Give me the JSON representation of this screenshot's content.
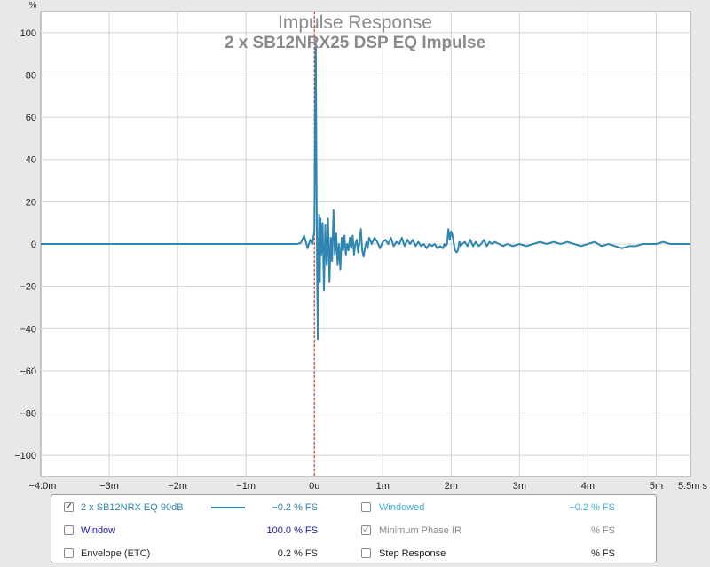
{
  "chart_data": {
    "type": "line",
    "title": "Impulse Response",
    "subtitle": "2 x SB12NRX25 DSP EQ Impulse",
    "ylabel": "%",
    "xunit": "s",
    "xlim": [
      -4.0,
      5.5
    ],
    "ylim": [
      -110,
      110
    ],
    "yticks": [
      100,
      80,
      60,
      40,
      20,
      0,
      -20,
      -40,
      -60,
      -80,
      -100
    ],
    "xticks": [
      {
        "v": -4,
        "label": "−4.0m"
      },
      {
        "v": -3,
        "label": "−3m"
      },
      {
        "v": -2,
        "label": "−2m"
      },
      {
        "v": -1,
        "label": "−1m"
      },
      {
        "v": 0,
        "label": "0u"
      },
      {
        "v": 1,
        "label": "1m"
      },
      {
        "v": 2,
        "label": "2m"
      },
      {
        "v": 3,
        "label": "3m"
      },
      {
        "v": 4,
        "label": "4m"
      },
      {
        "v": 5,
        "label": "5m"
      },
      {
        "v": 5.5,
        "label": "5.5m s"
      }
    ],
    "marker_x": 0.0,
    "series": [
      {
        "name": "2 x SB12NRX EQ 90dB",
        "color": "#2f86b0",
        "points": [
          [
            -4.0,
            0
          ],
          [
            -0.25,
            0
          ],
          [
            -0.2,
            0.5
          ],
          [
            -0.15,
            4
          ],
          [
            -0.1,
            -2
          ],
          [
            -0.06,
            2
          ],
          [
            -0.03,
            0
          ],
          [
            0.0,
            6
          ],
          [
            0.01,
            55
          ],
          [
            0.02,
            96
          ],
          [
            0.03,
            40
          ],
          [
            0.04,
            -15
          ],
          [
            0.05,
            -45
          ],
          [
            0.06,
            -10
          ],
          [
            0.07,
            14
          ],
          [
            0.08,
            -18
          ],
          [
            0.09,
            12
          ],
          [
            0.1,
            -5
          ],
          [
            0.12,
            10
          ],
          [
            0.14,
            -22
          ],
          [
            0.16,
            9
          ],
          [
            0.18,
            -10
          ],
          [
            0.2,
            12
          ],
          [
            0.22,
            -18
          ],
          [
            0.24,
            3
          ],
          [
            0.26,
            -8
          ],
          [
            0.28,
            16
          ],
          [
            0.3,
            -5
          ],
          [
            0.32,
            5
          ],
          [
            0.34,
            -10
          ],
          [
            0.36,
            0
          ],
          [
            0.38,
            -12
          ],
          [
            0.4,
            3
          ],
          [
            0.42,
            -3
          ],
          [
            0.44,
            4
          ],
          [
            0.46,
            -5
          ],
          [
            0.48,
            0
          ],
          [
            0.5,
            -3
          ],
          [
            0.52,
            3
          ],
          [
            0.54,
            -2
          ],
          [
            0.56,
            4
          ],
          [
            0.58,
            -5
          ],
          [
            0.6,
            0
          ],
          [
            0.62,
            2
          ],
          [
            0.64,
            -4
          ],
          [
            0.66,
            1
          ],
          [
            0.68,
            7
          ],
          [
            0.7,
            -3
          ],
          [
            0.72,
            -6
          ],
          [
            0.74,
            -2
          ],
          [
            0.76,
            1
          ],
          [
            0.78,
            -2
          ],
          [
            0.8,
            3
          ],
          [
            0.84,
            0
          ],
          [
            0.88,
            3
          ],
          [
            0.92,
            1
          ],
          [
            0.96,
            -2
          ],
          [
            1.0,
            1
          ],
          [
            1.04,
            2
          ],
          [
            1.08,
            0
          ],
          [
            1.12,
            3
          ],
          [
            1.16,
            -1
          ],
          [
            1.2,
            1
          ],
          [
            1.24,
            0
          ],
          [
            1.28,
            3
          ],
          [
            1.32,
            -1
          ],
          [
            1.36,
            2
          ],
          [
            1.4,
            0
          ],
          [
            1.44,
            2
          ],
          [
            1.48,
            -1
          ],
          [
            1.52,
            1
          ],
          [
            1.56,
            -1
          ],
          [
            1.6,
            0
          ],
          [
            1.64,
            -2
          ],
          [
            1.68,
            0
          ],
          [
            1.72,
            -1
          ],
          [
            1.76,
            0
          ],
          [
            1.8,
            -2
          ],
          [
            1.84,
            -1
          ],
          [
            1.88,
            -2
          ],
          [
            1.9,
            0
          ],
          [
            1.92,
            -1
          ],
          [
            1.94,
            0
          ],
          [
            1.96,
            7
          ],
          [
            1.98,
            2
          ],
          [
            2.0,
            6
          ],
          [
            2.02,
            4
          ],
          [
            2.04,
            0
          ],
          [
            2.06,
            -3
          ],
          [
            2.08,
            -4
          ],
          [
            2.1,
            -3
          ],
          [
            2.12,
            1
          ],
          [
            2.14,
            -1
          ],
          [
            2.16,
            0
          ],
          [
            2.2,
            1
          ],
          [
            2.24,
            -1
          ],
          [
            2.28,
            2
          ],
          [
            2.32,
            -1
          ],
          [
            2.36,
            1
          ],
          [
            2.4,
            -1
          ],
          [
            2.44,
            0
          ],
          [
            2.48,
            2
          ],
          [
            2.52,
            -1
          ],
          [
            2.56,
            1
          ],
          [
            2.6,
            0
          ],
          [
            2.64,
            1
          ],
          [
            2.7,
            0
          ],
          [
            2.76,
            -1
          ],
          [
            2.82,
            0
          ],
          [
            2.9,
            -1
          ],
          [
            3.0,
            0
          ],
          [
            3.1,
            -1
          ],
          [
            3.2,
            0
          ],
          [
            3.3,
            1
          ],
          [
            3.4,
            0
          ],
          [
            3.5,
            1
          ],
          [
            3.6,
            0
          ],
          [
            3.7,
            1
          ],
          [
            3.8,
            0
          ],
          [
            3.9,
            -1
          ],
          [
            4.0,
            0
          ],
          [
            4.1,
            1
          ],
          [
            4.2,
            -1
          ],
          [
            4.3,
            0
          ],
          [
            4.4,
            -1
          ],
          [
            4.5,
            -2
          ],
          [
            4.6,
            -1
          ],
          [
            4.7,
            -1
          ],
          [
            4.8,
            0
          ],
          [
            4.9,
            0
          ],
          [
            5.0,
            0
          ],
          [
            5.1,
            1
          ],
          [
            5.2,
            0
          ],
          [
            5.3,
            0
          ],
          [
            5.4,
            0
          ],
          [
            5.5,
            0
          ]
        ]
      }
    ]
  },
  "legend": {
    "rows": [
      [
        {
          "label": "2 x SB12NRX EQ 90dB",
          "value": "−0.2 % FS",
          "checked": "checked",
          "label_color": "#2f86b0",
          "value_color": "#2f86b0",
          "swatch": true
        },
        {
          "label": "Windowed",
          "value": "−0.2 % FS",
          "checked": "",
          "label_color": "#3ab0d8",
          "value_color": "#3ab0d8",
          "swatch": false
        }
      ],
      [
        {
          "label": "Window",
          "value": "100.0 % FS",
          "checked": "",
          "label_color": "#1a1aa8",
          "value_color": "#1a1aa8",
          "swatch": false
        },
        {
          "label": "Minimum Phase IR",
          "value": "% FS",
          "checked": "checked-grey",
          "label_color": "#888888",
          "value_color": "#888888",
          "swatch": false
        }
      ],
      [
        {
          "label": "Envelope (ETC)",
          "value": "0.2 % FS",
          "checked": "",
          "label_color": "#2b2b2b",
          "value_color": "#2b2b2b",
          "swatch": false
        },
        {
          "label": "Step Response",
          "value": "% FS",
          "checked": "",
          "label_color": "#1a1a1a",
          "value_color": "#1a1a1a",
          "swatch": false
        }
      ]
    ]
  }
}
